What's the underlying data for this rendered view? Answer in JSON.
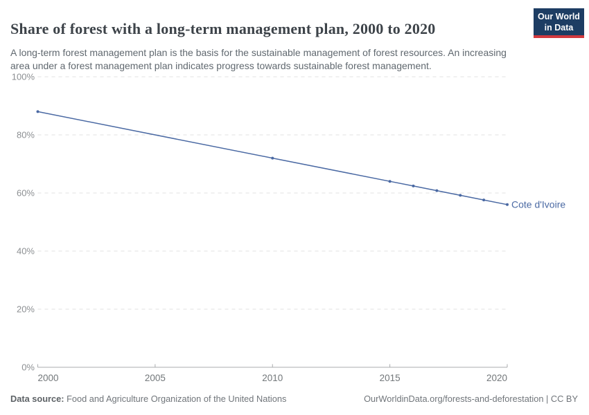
{
  "header": {
    "title": "Share of forest with a long-term management plan, 2000 to 2020",
    "subtitle": "A long-term forest management plan is the basis for the sustainable management of forest resources. An increasing area under a forest management plan indicates progress towards sustainable forest management.",
    "logo": {
      "line1": "Our World",
      "line2": "in Data"
    }
  },
  "chart_data": {
    "type": "line",
    "title": "Share of forest with a long-term management plan, 2000 to 2020",
    "xlabel": "",
    "ylabel": "",
    "x_range": [
      2000,
      2020
    ],
    "y_range": [
      0,
      100
    ],
    "grid": "horizontal-dashed",
    "legend_position": "end-of-line-label",
    "series": [
      {
        "name": "Cote d'Ivoire",
        "unit": "%",
        "x": [
          2000,
          2010,
          2015,
          2016,
          2017,
          2018,
          2019,
          2020
        ],
        "values": [
          88,
          72,
          64,
          62.4,
          60.8,
          59.2,
          57.6,
          56
        ]
      }
    ],
    "yticks": [
      {
        "value": 0,
        "label": "0%"
      },
      {
        "value": 20,
        "label": "20%"
      },
      {
        "value": 40,
        "label": "40%"
      },
      {
        "value": 60,
        "label": "60%"
      },
      {
        "value": 80,
        "label": "80%"
      },
      {
        "value": 100,
        "label": "100%"
      }
    ],
    "xticks": [
      {
        "value": 2000,
        "label": "2000"
      },
      {
        "value": 2005,
        "label": "2005"
      },
      {
        "value": 2010,
        "label": "2010"
      },
      {
        "value": 2015,
        "label": "2015"
      },
      {
        "value": 2020,
        "label": "2020"
      }
    ]
  },
  "footer": {
    "source_label": "Data source:",
    "source_value": " Food and Agriculture Organization of the United Nations",
    "credit": "OurWorldinData.org/forests-and-deforestation | CC BY"
  },
  "colors": {
    "series": "#4a69a3",
    "title": "#3d4349",
    "subtitle": "#60686f",
    "y_axis_label": "#8c8f92",
    "x_axis_label": "#72777a",
    "gridline": "#e0e0e0",
    "axis_line": "#a8abad",
    "logo_bg": "#1d3d63",
    "logo_bar": "#d2393e",
    "footer_text": "#70757a"
  }
}
